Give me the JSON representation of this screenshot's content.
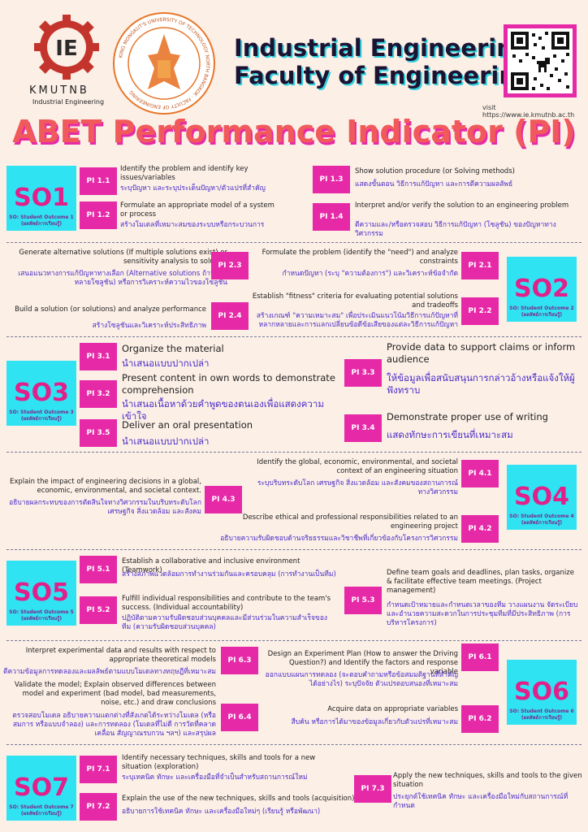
{
  "header": {
    "logo_ie": "IE",
    "logo_name": "KMUTNB",
    "logo_sub": "Industrial Engineering",
    "seal_text": "KING MONGKUT'S UNIVERSITY OF TECHNOLOGY NORTH BANGKOK · FACULTY OF ENGINEERING",
    "title_line1": "Industrial Engineering",
    "title_line2": "Faculty of Engineering",
    "visit": "visit https://www.ie.kmutnb.ac.th",
    "main_title": "ABET Performance Indicator (PI)"
  },
  "so_sub": "SO: Student Outcome",
  "so_sub_th": "(ผลลัพธ์การเรียนรู้)",
  "so1": {
    "label": "SO1",
    "sub": "SO: Student Outcome 1",
    "items": [
      {
        "pi": "PI 1.1",
        "en": "Identify the problem and identify key issues/variables",
        "th": "ระบุปัญหา และระบุประเด็นปัญหา/ตัวแปรที่สำคัญ"
      },
      {
        "pi": "PI 1.2",
        "en": "Formulate an appropriate model of a system or process",
        "th": "สร้างโมเดลที่เหมาะสมของระบบหรือกระบวนการ"
      },
      {
        "pi": "PI 1.3",
        "en": "Show solution procedure (or Solving methods)",
        "th": "แสดงขั้นตอน วิธีการแก้ปัญหา และการตีความผลลัพธ์"
      },
      {
        "pi": "PI 1.4",
        "en": "Interpret and/or verify the solution to an engineering problem",
        "th": "ตีความและ/หรือตรวจสอบ วิธีการแก้ปัญหา (โซลูชัน) ของปัญหาทางวิศวกรรม"
      }
    ]
  },
  "so2": {
    "label": "SO2",
    "sub": "SO: Student Outcome 2",
    "items": [
      {
        "pi": "PI 2.3",
        "en": "Generate alternative solutions (If multiple solutions exist) or sensitivity analysis to solution",
        "th": "เสนอแนวทางการแก้ปัญหาทางเลือก (Alternative solutions ถ้าหากมีหลายโซลูชัน) หรือการวิเคราะห์ความไวของโซลูชัน"
      },
      {
        "pi": "PI 2.4",
        "en": "Build a solution (or solutions) and analyze performance",
        "th": "สร้างโซลูชันและวิเคราะห์ประสิทธิภาพ"
      },
      {
        "pi": "PI 2.1",
        "en": "Formulate the problem (identify the \"need\") and analyze constraints",
        "th": "กำหนดปัญหา (ระบุ \"ความต้องการ\") และวิเคราะห์ข้อจำกัด"
      },
      {
        "pi": "PI 2.2",
        "en": "Establish \"fitness\" criteria for evaluating potential solutions and tradeoffs",
        "th": "สร้างเกณฑ์ \"ความเหมาะสม\" เพื่อประเมินแนวโน้มวิธีการแก้ปัญหาที่หลากหลายและการแลกเปลี่ยนข้อดีข้อเสียของแต่ละวิธีการแก้ปัญหา"
      }
    ]
  },
  "so3": {
    "label": "SO3",
    "sub": "SO: Student Outcome 3",
    "items": [
      {
        "pi": "PI 3.1",
        "en": "Organize the material",
        "th": "นำเสนอแบบปากเปล่า"
      },
      {
        "pi": "PI 3.2",
        "en": "Present content in own words to demonstrate comprehension",
        "th": "นำเสนอเนื้อหาด้วยคำพูดของตนเองเพื่อแสดงความเข้าใจ"
      },
      {
        "pi": "PI 3.5",
        "en": "Deliver an oral presentation",
        "th": "นำเสนอแบบปากเปล่า"
      },
      {
        "pi": "PI 3.3",
        "en": "Provide data to support claims or inform audience",
        "th": "ให้ข้อมูลเพื่อสนับสนุนการกล่าวอ้างหรือแจ้งให้ผู้ฟังทราบ"
      },
      {
        "pi": "PI 3.4",
        "en": "Demonstrate proper use of writing",
        "th": "แสดงทักษะการเขียนที่เหมาะสม"
      }
    ]
  },
  "so4": {
    "label": "SO4",
    "sub": "SO: Student Outcome 4",
    "items": [
      {
        "pi": "PI 4.3",
        "en": "Explain the impact of engineering decisions in a global, economic, environmental, and societal context.",
        "th": "อธิบายผลกระทบของการตัดสินใจทางวิศวกรรมในบริบทระดับโลก เศรษฐกิจ สิ่งแวดล้อม และสังคม"
      },
      {
        "pi": "PI 4.1",
        "en": "Identify the global, economic, environmental, and societal context of an engineering situation",
        "th": "ระบุบริบทระดับโลก เศรษฐกิจ สิ่งแวดล้อม และสังคมของสถานการณ์ทางวิศวกรรม"
      },
      {
        "pi": "PI 4.2",
        "en": "Describe ethical and professional responsibilities related to an engineering project",
        "th": "อธิบายความรับผิดชอบด้านจริยธรรมและวิชาชีพที่เกี่ยวข้องกับโครงการวิศวกรรม"
      }
    ]
  },
  "so5": {
    "label": "SO5",
    "sub": "SO: Student Outcome 5",
    "items": [
      {
        "pi": "PI 5.1",
        "en": "Establish a collaborative and inclusive environment (Teamwork)",
        "th": "สร้างสภาพแวดล้อมการทำงานร่วมกันและครอบคลุม (การทำงานเป็นทีม)"
      },
      {
        "pi": "PI 5.2",
        "en": "Fulfill individual responsibilities and contribute to the team's success. (Individual accountability)",
        "th": "ปฏิบัติตามความรับผิดชอบส่วนบุคคลและมีส่วนร่วมในความสำเร็จของทีม (ความรับผิดชอบส่วนบุคคล)"
      },
      {
        "pi": "PI 5.3",
        "en": "Define team goals and deadlines, plan tasks, organize & facilitate effective team meetings. (Project management)",
        "th": "กำหนดเป้าหมายและกำหนดเวลาของทีม วางแผนงาน จัดระเบียบและอำนวยความสะดวกในการประชุมทีมที่มีประสิทธิภาพ (การบริหารโครงการ)"
      }
    ]
  },
  "so6": {
    "label": "SO6",
    "sub": "SO: Student Outcome 6",
    "items": [
      {
        "pi": "PI 6.3",
        "en": "Interpret experimental data and results with respect to appropriate theoretical models",
        "th": "ตีความข้อมูลการทดลองและผลลัพธ์ตามแบบโมเดลทางทฤษฎีที่เหมาะสม"
      },
      {
        "pi": "PI 6.4",
        "en": "Validate the model; Explain observed differences between model and experiment (bad model, bad measurements, noise, etc.) and draw conclusions",
        "th": "ตรวจสอบโมเดล อธิบายความแตกต่างที่สังเกตได้ระหว่างโมเดล (หรือสมการ หรือแบบจำลอง) และการทดลอง (โมเดลที่ไม่ดี การวัดที่คลาดเคลื่อน สัญญาณรบกวน ฯลฯ) และสรุปผล"
      },
      {
        "pi": "PI 6.1",
        "en": "Design an Experiment Plan (How to answer the Driving Question?) and Identify the factors and response variable",
        "th": "ออกแบบแผนการทดลอง (จะตอบคำถามหรือข้อสมมติฐานที่สำคัญได้อย่างไร) ระบุปัจจัย ตัวแปรตอบสนองที่เหมาะสม"
      },
      {
        "pi": "PI 6.2",
        "en": "Acquire data on appropriate variables",
        "th": "สืบค้น หรือการได้มาของข้อมูลเกี่ยวกับตัวแปรที่เหมาะสม"
      }
    ]
  },
  "so7": {
    "label": "SO7",
    "sub": "SO: Student Outcome 7",
    "items": [
      {
        "pi": "PI 7.1",
        "en": "Identify necessary techniques, skills and tools for a new situation (exploration)",
        "th": "ระบุเทคนิค ทักษะ และเครื่องมือที่จำเป็นสำหรับสถานการณ์ใหม่"
      },
      {
        "pi": "PI 7.2",
        "en": "Explain the use of the new techniques, skills and tools (acquisition)",
        "th": "อธิบายการใช้เทคนิค ทักษะ และเครื่องมือใหม่ๆ (เรียนรู้ หรือพัฒนา)"
      },
      {
        "pi": "PI 7.3",
        "en": "Apply the new techniques, skills and tools to the given situation",
        "th": "ประยุกต์ใช้เทคนิค ทักษะ และเครื่องมือใหม่กับสถานการณ์ที่กำหนด"
      }
    ]
  },
  "colors": {
    "pink": "#e62aa7",
    "cyan": "#2fe3f2",
    "title_red": "#f05a5a",
    "navy": "#1c1333",
    "thai_blue": "#4a2cc8",
    "background": "#fcefe6"
  }
}
